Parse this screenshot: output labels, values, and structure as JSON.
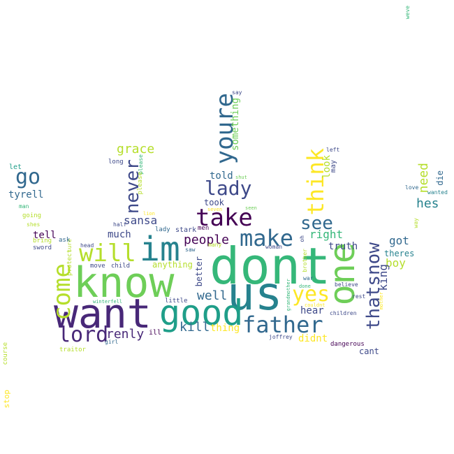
{
  "palette": {
    "dark_purple": "#440154",
    "indigo": "#482878",
    "violet": "#3e4989",
    "slate_blue": "#31688e",
    "teal_blue": "#26828e",
    "teal": "#1f9e89",
    "green": "#35b779",
    "light_green": "#6ece58",
    "lime": "#b5de2b",
    "yellow": "#fde725"
  },
  "words": [
    {
      "text": "dont",
      "color": "#35b779"
    },
    {
      "text": "know",
      "color": "#6ece58"
    },
    {
      "text": "want",
      "color": "#482878"
    },
    {
      "text": "us",
      "color": "#26828e"
    },
    {
      "text": "one",
      "color": "#6ece58"
    },
    {
      "text": "im",
      "color": "#26828e"
    },
    {
      "text": "good",
      "color": "#1f9e89"
    },
    {
      "text": "youre",
      "color": "#31688e"
    },
    {
      "text": "take",
      "color": "#440154"
    },
    {
      "text": "make",
      "color": "#31688e"
    },
    {
      "text": "father",
      "color": "#31688e"
    },
    {
      "text": "come",
      "color": "#b5de2b"
    },
    {
      "text": "think",
      "color": "#fde725"
    },
    {
      "text": "will",
      "color": "#b5de2b"
    },
    {
      "text": "thatsnow",
      "color": "#3e4989"
    },
    {
      "text": "lord",
      "color": "#482878"
    },
    {
      "text": "go",
      "color": "#31688e"
    },
    {
      "text": "lady",
      "color": "#3e4989"
    },
    {
      "text": "never",
      "color": "#3e4989"
    },
    {
      "text": "yes",
      "color": "#fde725"
    },
    {
      "text": "see",
      "color": "#31688e"
    },
    {
      "text": "grace",
      "color": "#b5de2b"
    },
    {
      "text": "renly",
      "color": "#482878"
    },
    {
      "text": "kill",
      "color": "#31688e"
    },
    {
      "text": "well",
      "color": "#31688e"
    },
    {
      "text": "people",
      "color": "#440154"
    },
    {
      "text": "sansa",
      "color": "#3e4989"
    },
    {
      "text": "much",
      "color": "#3e4989"
    },
    {
      "text": "right",
      "color": "#35b779"
    },
    {
      "text": "got",
      "color": "#31688e"
    },
    {
      "text": "boy",
      "color": "#b5de2b"
    },
    {
      "text": "hes",
      "color": "#26828e"
    },
    {
      "text": "king",
      "color": "#3e4989"
    },
    {
      "text": "need",
      "color": "#b5de2b"
    },
    {
      "text": "truth",
      "color": "#3e4989"
    },
    {
      "text": "told",
      "color": "#31688e"
    },
    {
      "text": "took",
      "color": "#3e4989"
    },
    {
      "text": "something",
      "color": "#6ece58"
    },
    {
      "text": "look",
      "color": "#b5de2b"
    },
    {
      "text": "hear",
      "color": "#3e4989"
    },
    {
      "text": "tell",
      "color": "#440154"
    },
    {
      "text": "tyrell",
      "color": "#31688e"
    },
    {
      "text": "thing",
      "color": "#fde725"
    },
    {
      "text": "didnt",
      "color": "#fde725"
    },
    {
      "text": "theres",
      "color": "#26828e"
    },
    {
      "text": "cant",
      "color": "#3e4989"
    },
    {
      "text": "die",
      "color": "#31688e"
    },
    {
      "text": "anything",
      "color": "#b5de2b"
    },
    {
      "text": "better",
      "color": "#3e4989"
    },
    {
      "text": "may",
      "color": "#3e4989"
    },
    {
      "text": "ill",
      "color": "#440154"
    },
    {
      "text": "stark",
      "color": "#3e4989"
    },
    {
      "text": "lady",
      "color": "#31688e"
    },
    {
      "text": "men",
      "color": "#440154"
    },
    {
      "text": "let",
      "color": "#1f9e89"
    },
    {
      "text": "man",
      "color": "#35b779"
    },
    {
      "text": "going",
      "color": "#b5de2b"
    },
    {
      "text": "shes",
      "color": "#b5de2b"
    },
    {
      "text": "bring",
      "color": "#b5de2b"
    },
    {
      "text": "sure",
      "color": "#b5de2b"
    },
    {
      "text": "sword",
      "color": "#3e4989"
    },
    {
      "text": "protect",
      "color": "#b5de2b"
    },
    {
      "text": "ask",
      "color": "#31688e"
    },
    {
      "text": "head",
      "color": "#3e4989"
    },
    {
      "text": "move",
      "color": "#3e4989"
    },
    {
      "text": "child",
      "color": "#3e4989"
    },
    {
      "text": "half",
      "color": "#3e4989"
    },
    {
      "text": "long",
      "color": "#3e4989"
    },
    {
      "text": "please",
      "color": "#35b779"
    },
    {
      "text": "please",
      "color": "#b5de2b"
    },
    {
      "text": "lion",
      "color": "#fde725"
    },
    {
      "text": "saw",
      "color": "#31688e"
    },
    {
      "text": "many",
      "color": "#b5de2b"
    },
    {
      "text": "woman",
      "color": "#3e4989"
    },
    {
      "text": "seven",
      "color": "#fde725"
    },
    {
      "text": "seen",
      "color": "#6ece58"
    },
    {
      "text": "shut",
      "color": "#6ece58"
    },
    {
      "text": "say",
      "color": "#3e4989"
    },
    {
      "text": "left",
      "color": "#3e4989"
    },
    {
      "text": "weve",
      "color": "#35b779"
    },
    {
      "text": "love",
      "color": "#31688e"
    },
    {
      "text": "wanted",
      "color": "#26828e"
    },
    {
      "text": "way",
      "color": "#b5de2b"
    },
    {
      "text": "oh",
      "color": "#3e4989"
    },
    {
      "text": "brother",
      "color": "#b5de2b"
    },
    {
      "text": "grandmother",
      "color": "#35b779"
    },
    {
      "text": "war",
      "color": "#31688e"
    },
    {
      "text": "done",
      "color": "#35b779"
    },
    {
      "text": "couldnt",
      "color": "#fde725"
    },
    {
      "text": "believe",
      "color": "#3e4989"
    },
    {
      "text": "rest",
      "color": "#3e4989"
    },
    {
      "text": "children",
      "color": "#3e4989"
    },
    {
      "text": "mother",
      "color": "#fde725"
    },
    {
      "text": "joffrey",
      "color": "#3e4989"
    },
    {
      "text": "dangerous",
      "color": "#440154"
    },
    {
      "text": "winterfell",
      "color": "#35b779"
    },
    {
      "text": "little",
      "color": "#3e4989"
    },
    {
      "text": "girl",
      "color": "#31688e"
    },
    {
      "text": "traitor",
      "color": "#b5de2b"
    },
    {
      "text": "course",
      "color": "#b5de2b"
    },
    {
      "text": "stop",
      "color": "#fde725"
    }
  ]
}
